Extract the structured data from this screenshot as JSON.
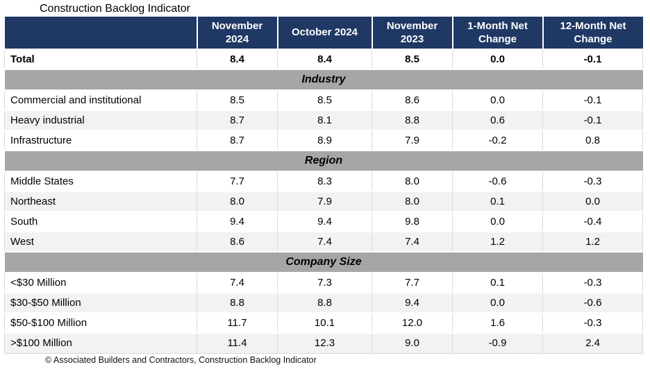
{
  "title": "Construction Backlog Indicator",
  "footer": "© Associated Builders and Contractors, Construction Backlog Indicator",
  "colors": {
    "header_bg": "#1F3864",
    "header_text": "#FFFFFF",
    "section_bg": "#A6A6A6",
    "row_alt": "#F2F2F2",
    "border": "#D9D9D9"
  },
  "chart_data": {
    "type": "table",
    "title": "Construction Backlog Indicator",
    "columns": [
      "November 2024",
      "October 2024",
      "November 2023",
      "1-Month Net Change",
      "12-Month Net Change"
    ],
    "sections": [
      {
        "name": null,
        "rows": [
          {
            "label": "Total",
            "values": [
              "8.4",
              "8.4",
              "8.5",
              "0.0",
              "-0.1"
            ],
            "bold": true
          }
        ]
      },
      {
        "name": "Industry",
        "rows": [
          {
            "label": "Commercial and institutional",
            "values": [
              "8.5",
              "8.5",
              "8.6",
              "0.0",
              "-0.1"
            ],
            "bold": false
          },
          {
            "label": "Heavy industrial",
            "values": [
              "8.7",
              "8.1",
              "8.8",
              "0.6",
              "-0.1"
            ],
            "bold": false
          },
          {
            "label": "Infrastructure",
            "values": [
              "8.7",
              "8.9",
              "7.9",
              "-0.2",
              "0.8"
            ],
            "bold": false
          }
        ]
      },
      {
        "name": "Region",
        "rows": [
          {
            "label": "Middle States",
            "values": [
              "7.7",
              "8.3",
              "8.0",
              "-0.6",
              "-0.3"
            ],
            "bold": false
          },
          {
            "label": "Northeast",
            "values": [
              "8.0",
              "7.9",
              "8.0",
              "0.1",
              "0.0"
            ],
            "bold": false
          },
          {
            "label": "South",
            "values": [
              "9.4",
              "9.4",
              "9.8",
              "0.0",
              "-0.4"
            ],
            "bold": false
          },
          {
            "label": "West",
            "values": [
              "8.6",
              "7.4",
              "7.4",
              "1.2",
              "1.2"
            ],
            "bold": false
          }
        ]
      },
      {
        "name": "Company Size",
        "rows": [
          {
            "label": "<$30 Million",
            "values": [
              "7.4",
              "7.3",
              "7.7",
              "0.1",
              "-0.3"
            ],
            "bold": false
          },
          {
            "label": "$30-$50 Million",
            "values": [
              "8.8",
              "8.8",
              "9.4",
              "0.0",
              "-0.6"
            ],
            "bold": false
          },
          {
            "label": "$50-$100 Million",
            "values": [
              "11.7",
              "10.1",
              "12.0",
              "1.6",
              "-0.3"
            ],
            "bold": false
          },
          {
            "label": ">$100 Million",
            "values": [
              "11.4",
              "12.3",
              "9.0",
              "-0.9",
              "2.4"
            ],
            "bold": false
          }
        ]
      }
    ],
    "footnote": "© Associated Builders and Contractors, Construction Backlog Indicator"
  }
}
